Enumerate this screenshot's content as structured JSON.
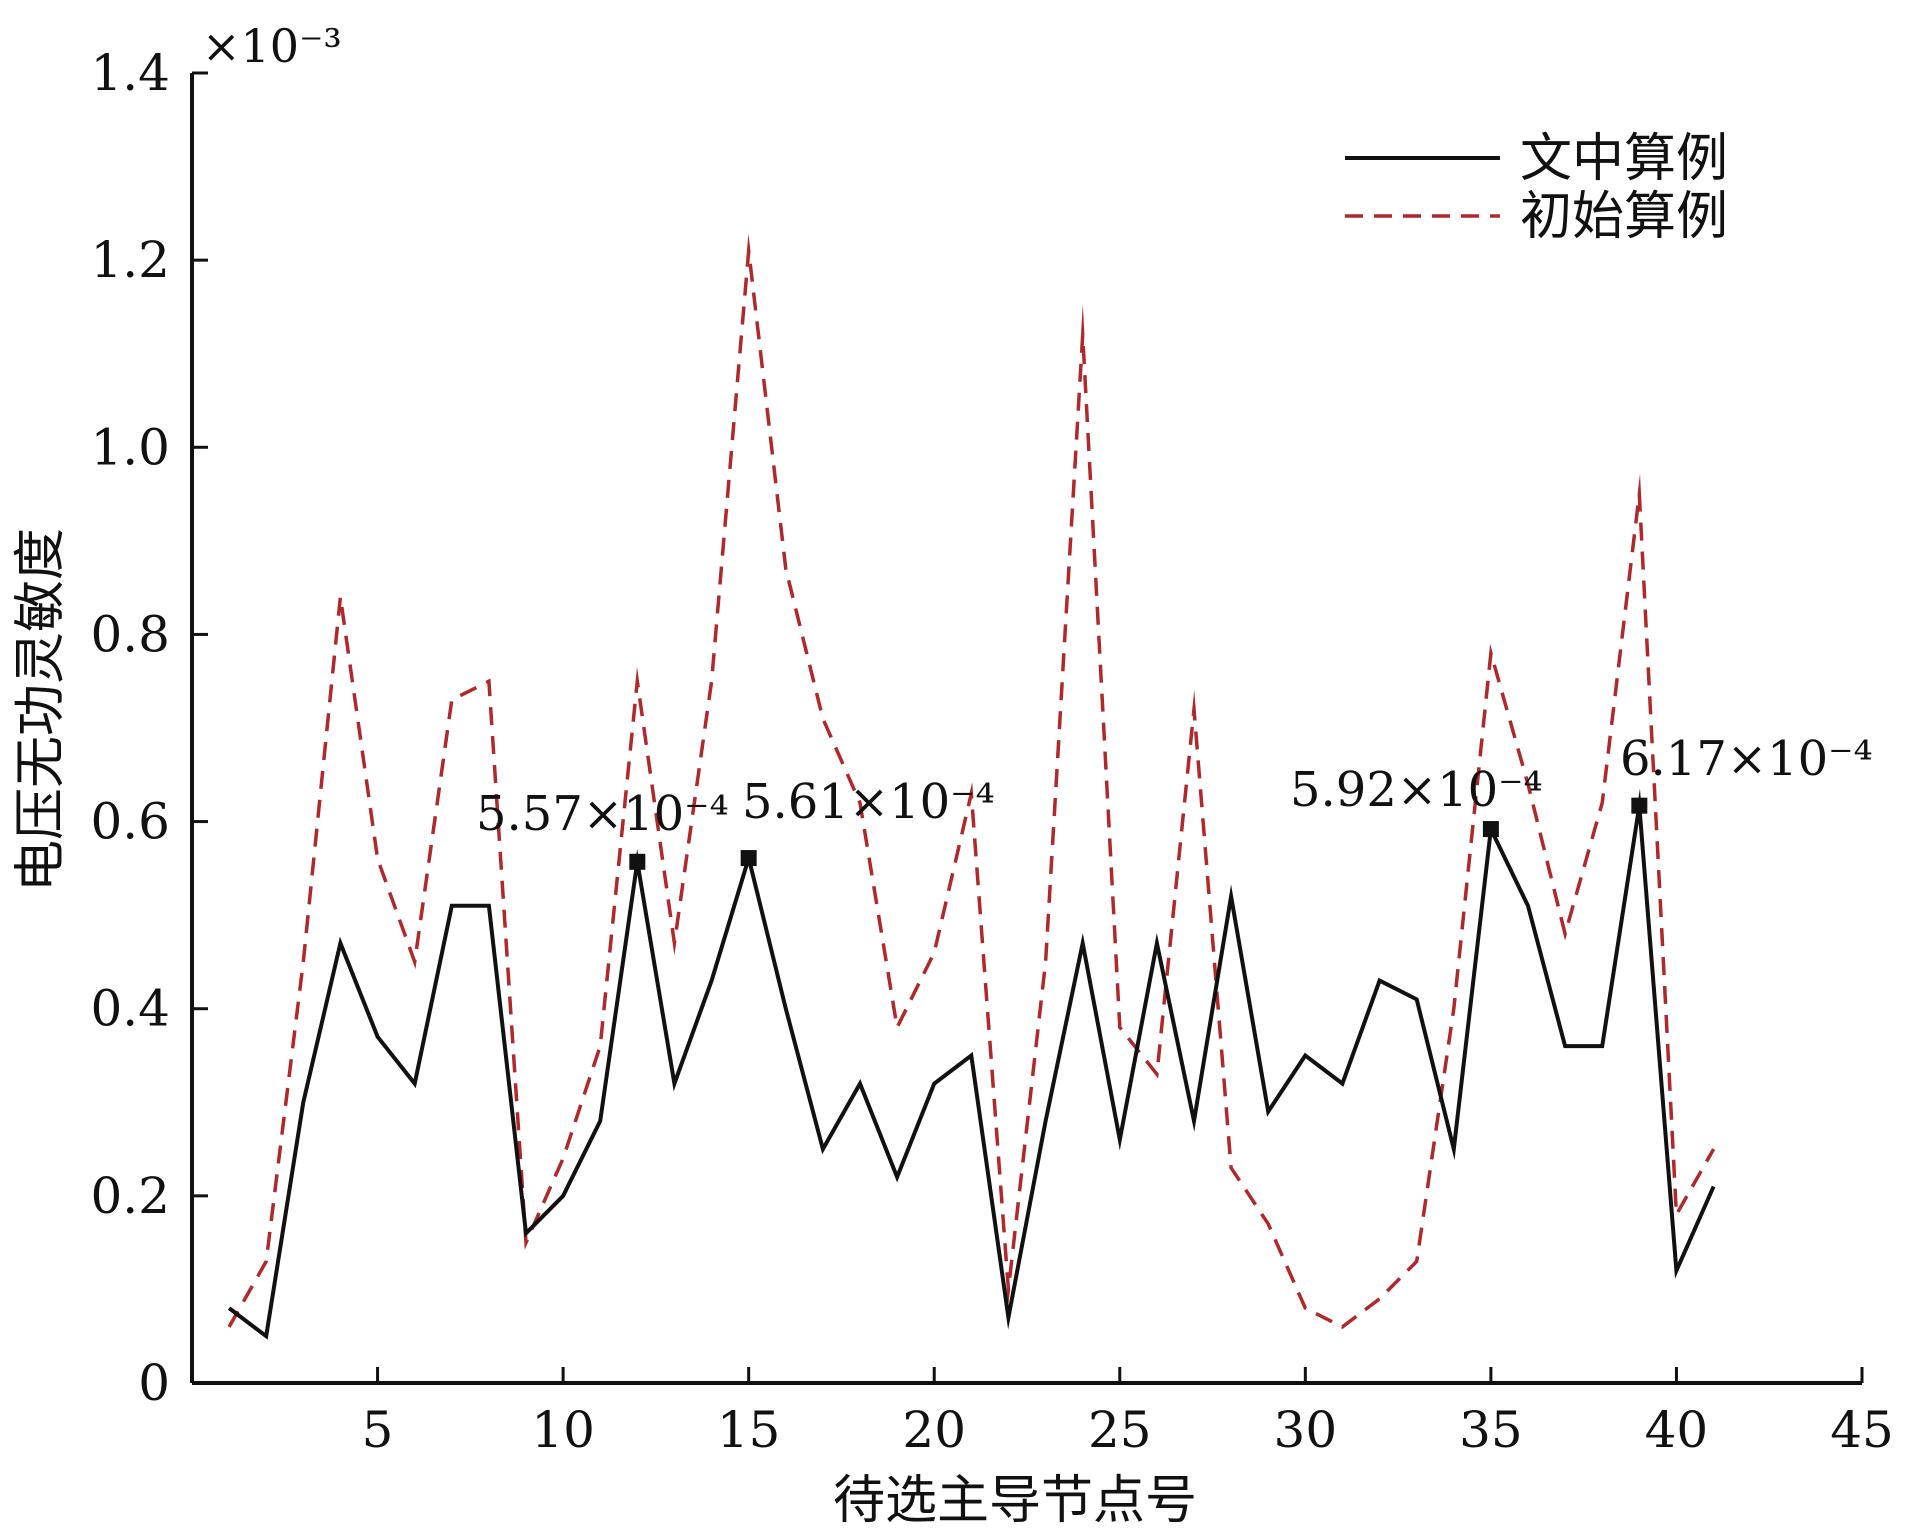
{
  "chart_data": {
    "type": "line",
    "xlabel": "待选主导节点号",
    "ylabel": "电压无功灵敏度",
    "y_multiplier": "×10⁻³",
    "xlim": [
      0,
      45
    ],
    "ylim": [
      0,
      1.4
    ],
    "xticks": [
      5,
      10,
      15,
      20,
      25,
      30,
      35,
      40,
      45
    ],
    "yticks": [
      0,
      0.2,
      0.4,
      0.6,
      0.8,
      1.0,
      1.2,
      1.4
    ],
    "ytick_labels": [
      "0",
      "0.2",
      "0.4",
      "0.6",
      "0.8",
      "1.0",
      "1.2",
      "1.4"
    ],
    "grid": false,
    "legend_position": "top-right",
    "x": [
      1,
      2,
      3,
      4,
      5,
      6,
      7,
      8,
      9,
      10,
      11,
      12,
      13,
      14,
      15,
      16,
      17,
      18,
      19,
      20,
      21,
      22,
      23,
      24,
      25,
      26,
      27,
      28,
      29,
      30,
      31,
      32,
      33,
      34,
      35,
      36,
      37,
      38,
      39,
      40,
      41
    ],
    "series": [
      {
        "name": "文中算例",
        "color": "#111111",
        "line_style": "solid",
        "values": [
          0.08,
          0.05,
          0.3,
          0.47,
          0.37,
          0.32,
          0.51,
          0.51,
          0.16,
          0.2,
          0.28,
          0.557,
          0.32,
          0.43,
          0.561,
          0.4,
          0.25,
          0.32,
          0.22,
          0.32,
          0.35,
          0.07,
          0.28,
          0.47,
          0.26,
          0.47,
          0.28,
          0.52,
          0.29,
          0.35,
          0.32,
          0.43,
          0.41,
          0.25,
          0.592,
          0.51,
          0.36,
          0.36,
          0.617,
          0.12,
          0.21
        ]
      },
      {
        "name": "初始算例",
        "color": "#b0282a",
        "line_style": "dashed",
        "values": [
          0.06,
          0.13,
          0.45,
          0.84,
          0.56,
          0.45,
          0.73,
          0.75,
          0.15,
          0.24,
          0.36,
          0.75,
          0.47,
          0.75,
          1.21,
          0.87,
          0.71,
          0.62,
          0.38,
          0.46,
          0.63,
          0.1,
          0.45,
          1.12,
          0.38,
          0.33,
          0.72,
          0.23,
          0.17,
          0.08,
          0.06,
          0.09,
          0.13,
          0.4,
          0.78,
          0.64,
          0.48,
          0.62,
          0.95,
          0.18,
          0.25
        ]
      }
    ],
    "annotations": [
      {
        "x": 12,
        "y": 0.557,
        "label": "5.57×10⁻⁴"
      },
      {
        "x": 15,
        "y": 0.561,
        "label": "5.61×10⁻⁴"
      },
      {
        "x": 35,
        "y": 0.592,
        "label": "5.92×10⁻⁴"
      },
      {
        "x": 39,
        "y": 0.617,
        "label": "6.17×10⁻⁴"
      }
    ]
  }
}
